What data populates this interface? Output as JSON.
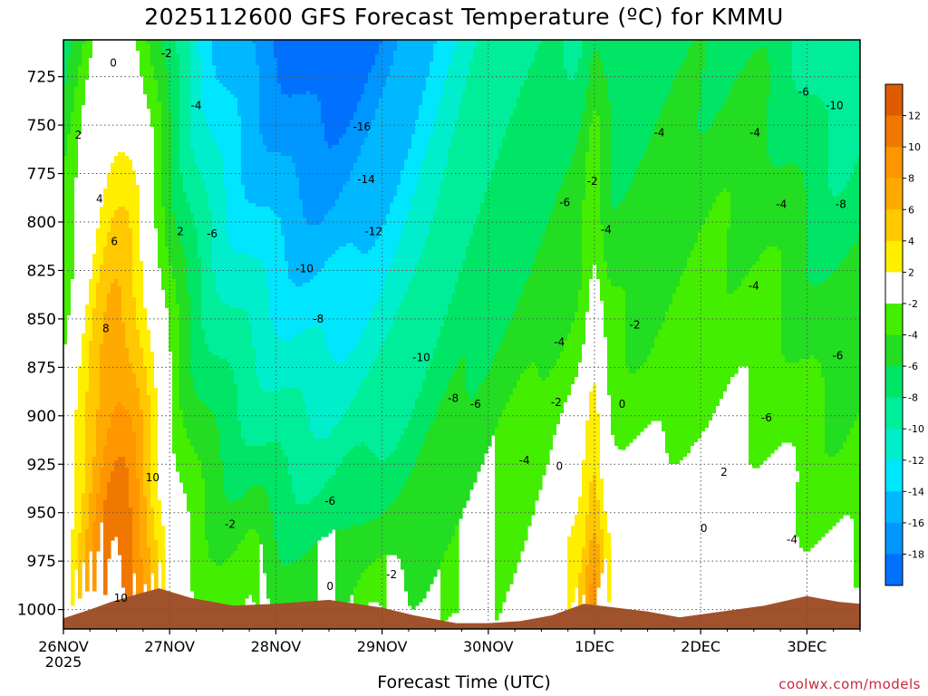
{
  "chart_data": {
    "type": "heatmap",
    "title": "2025112600 GFS Forecast Temperature (ºC) for KMMU",
    "xlabel": "Forecast Time (UTC)",
    "ylabel": "",
    "x_ticks": [
      "26NOV",
      "27NOV",
      "28NOV",
      "29NOV",
      "30NOV",
      "1DEC",
      "2DEC",
      "3DEC"
    ],
    "x_year_label": "2025",
    "x_range_days": [
      0,
      7.5
    ],
    "y_ticks": [
      725,
      750,
      775,
      800,
      825,
      850,
      875,
      900,
      925,
      950,
      975,
      1000
    ],
    "y_range_hPa": [
      706,
      1010
    ],
    "colorbar": {
      "labels": [
        12,
        10,
        8,
        6,
        4,
        2,
        -2,
        -4,
        -6,
        -8,
        -10,
        -12,
        -14,
        -16,
        -18
      ],
      "bins": [
        {
          "lo": 12,
          "hi": 14,
          "color": "#e05a00"
        },
        {
          "lo": 10,
          "hi": 12,
          "color": "#f07800"
        },
        {
          "lo": 8,
          "hi": 10,
          "color": "#ff9600"
        },
        {
          "lo": 6,
          "hi": 8,
          "color": "#ffaa00"
        },
        {
          "lo": 4,
          "hi": 6,
          "color": "#ffc800"
        },
        {
          "lo": 2,
          "hi": 4,
          "color": "#ffee00"
        },
        {
          "lo": -2,
          "hi": 2,
          "color": "#ffffff"
        },
        {
          "lo": -4,
          "hi": -2,
          "color": "#44ee00"
        },
        {
          "lo": -6,
          "hi": -4,
          "color": "#22dd22"
        },
        {
          "lo": -8,
          "hi": -6,
          "color": "#00e566"
        },
        {
          "lo": -10,
          "hi": -8,
          "color": "#00ee99"
        },
        {
          "lo": -12,
          "hi": -10,
          "color": "#00eecc"
        },
        {
          "lo": -14,
          "hi": -12,
          "color": "#00e6ff"
        },
        {
          "lo": -16,
          "hi": -14,
          "color": "#00b8ff"
        },
        {
          "lo": -18,
          "hi": -16,
          "color": "#0096ff"
        },
        {
          "lo": -20,
          "hi": -18,
          "color": "#0070ff"
        }
      ]
    },
    "surface_color": "#a0522d",
    "zero_contour_color": "#b0146e",
    "grid": true,
    "contour_labels": [
      {
        "text": "0",
        "day": 0.47,
        "p": 718
      },
      {
        "text": "2",
        "day": 0.14,
        "p": 755
      },
      {
        "text": "4",
        "day": 0.34,
        "p": 788
      },
      {
        "text": "6",
        "day": 0.48,
        "p": 810
      },
      {
        "text": "8",
        "day": 0.4,
        "p": 855
      },
      {
        "text": "10",
        "day": 0.84,
        "p": 932
      },
      {
        "text": "10",
        "day": 0.54,
        "p": 994
      },
      {
        "text": "2",
        "day": 1.1,
        "p": 805
      },
      {
        "text": "-2",
        "day": 0.97,
        "p": 713
      },
      {
        "text": "-4",
        "day": 1.25,
        "p": 740
      },
      {
        "text": "-6",
        "day": 1.4,
        "p": 806
      },
      {
        "text": "-2",
        "day": 1.57,
        "p": 956
      },
      {
        "text": "-16",
        "day": 2.81,
        "p": 751
      },
      {
        "text": "-14",
        "day": 2.85,
        "p": 778
      },
      {
        "text": "-12",
        "day": 2.92,
        "p": 805
      },
      {
        "text": "-10",
        "day": 2.27,
        "p": 824
      },
      {
        "text": "-8",
        "day": 2.4,
        "p": 850
      },
      {
        "text": "-10",
        "day": 3.37,
        "p": 870
      },
      {
        "text": "-6",
        "day": 2.51,
        "p": 944
      },
      {
        "text": "0",
        "day": 2.51,
        "p": 988
      },
      {
        "text": "-2",
        "day": 3.09,
        "p": 982
      },
      {
        "text": "-8",
        "day": 3.67,
        "p": 891
      },
      {
        "text": "-6",
        "day": 3.88,
        "p": 894
      },
      {
        "text": "-4",
        "day": 4.34,
        "p": 923
      },
      {
        "text": "0",
        "day": 4.67,
        "p": 926
      },
      {
        "text": "-2",
        "day": 4.64,
        "p": 893
      },
      {
        "text": "-4",
        "day": 4.67,
        "p": 862
      },
      {
        "text": "-6",
        "day": 4.72,
        "p": 790
      },
      {
        "text": "-2",
        "day": 4.98,
        "p": 779
      },
      {
        "text": "-4",
        "day": 5.11,
        "p": 804
      },
      {
        "text": "0",
        "day": 5.26,
        "p": 894
      },
      {
        "text": "-2",
        "day": 5.38,
        "p": 853
      },
      {
        "text": "-4",
        "day": 5.61,
        "p": 754
      },
      {
        "text": "2",
        "day": 6.22,
        "p": 929
      },
      {
        "text": "0",
        "day": 6.03,
        "p": 958
      },
      {
        "text": "-4",
        "day": 6.51,
        "p": 754
      },
      {
        "text": "-4",
        "day": 6.76,
        "p": 791
      },
      {
        "text": "-4",
        "day": 6.5,
        "p": 833
      },
      {
        "text": "-6",
        "day": 6.62,
        "p": 901
      },
      {
        "text": "-4",
        "day": 6.86,
        "p": 964
      },
      {
        "text": "-6",
        "day": 6.97,
        "p": 733
      },
      {
        "text": "-10",
        "day": 7.26,
        "p": 740
      },
      {
        "text": "-8",
        "day": 7.32,
        "p": 791
      },
      {
        "text": "-6",
        "day": 7.29,
        "p": 869
      }
    ]
  },
  "credit": "coolwx.com/models"
}
